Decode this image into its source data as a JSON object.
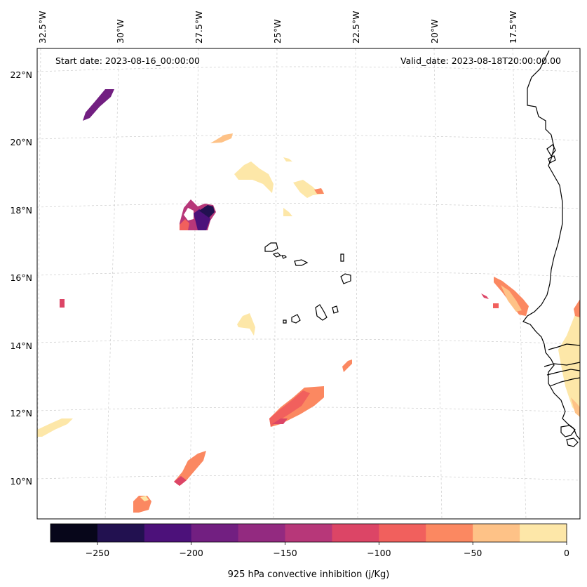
{
  "annotations": {
    "start_date": "Start date: 2023-08-16_00:00:00",
    "valid_date": "Valid_date: 2023-08-18T20:00:00.00"
  },
  "lon_ticks": [
    "32.5°W",
    "30°W",
    "27.5°W",
    "25°W",
    "22.5°W",
    "20°W",
    "17.5°W"
  ],
  "lat_ticks": [
    "22°N",
    "20°N",
    "18°N",
    "16°N",
    "14°N",
    "12°N",
    "10°N"
  ],
  "colorbar": {
    "label": "925 hPa convective inhibition (j/Kg)",
    "tick_labels": [
      "−250",
      "−200",
      "−150",
      "−100",
      "−50",
      "0"
    ],
    "levels": [
      -275,
      -250,
      -225,
      -200,
      -175,
      -150,
      -125,
      -100,
      -75,
      -50,
      -25,
      0
    ],
    "colors": [
      "#07061a",
      "#221150",
      "#4c117a",
      "#721f81",
      "#932a80",
      "#b73779",
      "#dc4566",
      "#f1605d",
      "#fb8861",
      "#fec287",
      "#fde7a8"
    ]
  },
  "colors": {
    "gridline": "#cccccc",
    "coastline": "#000000",
    "frame": "#000000"
  }
}
